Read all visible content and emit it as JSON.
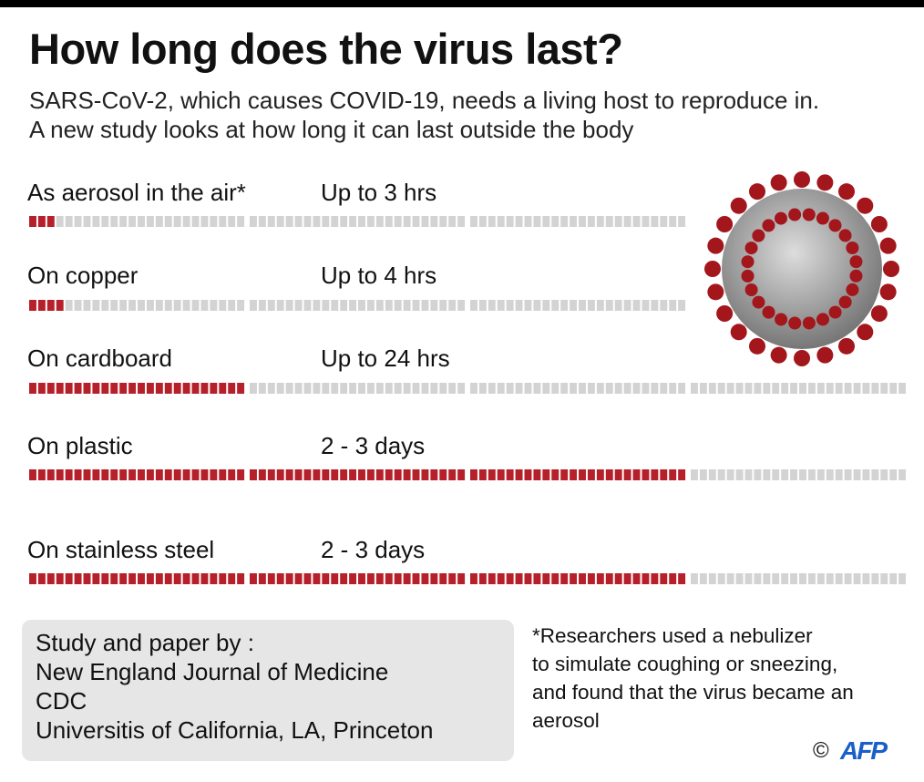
{
  "title": "How long does the virus last?",
  "subtitle": [
    "SARS-CoV-2, which causes COVID-19, needs a living host to reproduce in.",
    "A new study looks at how long it can last outside the body"
  ],
  "chart_data": {
    "type": "bar",
    "unit": "hours",
    "segment_hours": 24,
    "categories": [
      "As aerosol in the air*",
      "On copper",
      "On cardboard",
      "On plastic",
      "On stainless steel"
    ],
    "labels": [
      "Up to 3 hrs",
      "Up to 4 hrs",
      "Up to 24 hrs",
      "2 - 3 days",
      "2 - 3 days"
    ],
    "values": [
      3,
      4,
      24,
      72,
      72
    ],
    "scale_max": [
      72,
      72,
      96,
      96,
      96
    ],
    "colors": {
      "filled": "#b5202a",
      "empty": "#d3d3d3"
    }
  },
  "source": {
    "heading": "Study and paper by :",
    "lines": [
      "New England Journal of Medicine",
      "CDC",
      "Universitis of California, LA, Princeton"
    ]
  },
  "footnote": [
    "*Researchers used a nebulizer",
    "to simulate coughing or sneezing,",
    "and found that the virus became an",
    "aerosol"
  ],
  "credit": {
    "symbol": "©",
    "logo": "AFP"
  }
}
